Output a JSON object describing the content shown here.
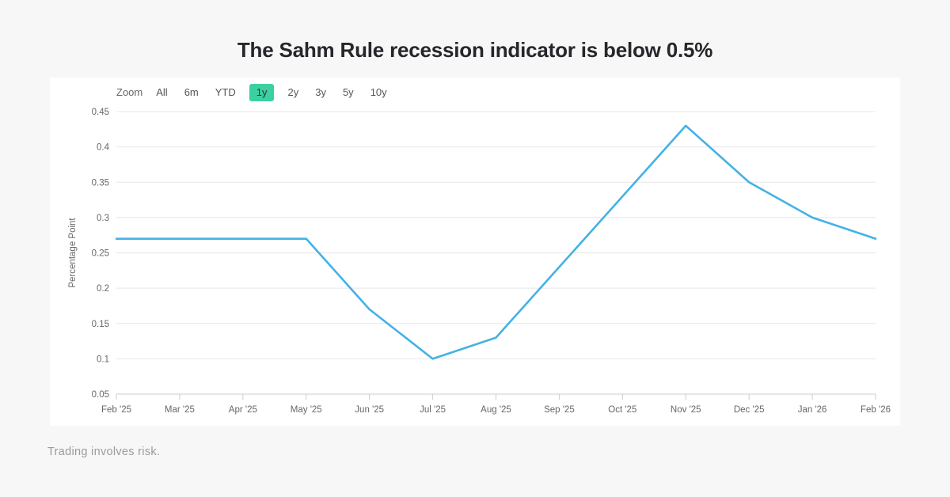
{
  "header": {
    "title": "The Sahm Rule recession indicator is below 0.5%"
  },
  "toolbar": {
    "zoom_label": "Zoom",
    "ranges": [
      "All",
      "6m",
      "YTD",
      "1y",
      "2y",
      "3y",
      "5y",
      "10y"
    ],
    "selected": "1y"
  },
  "chart_data": {
    "type": "line",
    "categories": [
      "Feb '25",
      "Mar '25",
      "Apr '25",
      "May '25",
      "Jun '25",
      "Jul '25",
      "Aug '25",
      "Sep '25",
      "Oct '25",
      "Nov '25",
      "Dec '25",
      "Jan '26",
      "Feb '26"
    ],
    "values": [
      0.27,
      0.27,
      0.27,
      0.27,
      0.17,
      0.1,
      0.13,
      0.23,
      0.33,
      0.43,
      0.35,
      0.3,
      0.27
    ],
    "title": "",
    "xlabel": "",
    "ylabel": "Percentage Point",
    "ylim": [
      0.05,
      0.45
    ],
    "ytick_step": 0.05,
    "grid": true,
    "legend": "none",
    "line_color": "#44b2e4",
    "grid_color": "#e7e7e7",
    "axis_line_color": "#cccccc",
    "tick_label_color": "#666666"
  },
  "colors": {
    "accent_green": "#3bd0a2",
    "panel_background": "#ffffff",
    "page_background": "#f7f7f7"
  },
  "footer": {
    "disclaimer": "Trading involves risk."
  }
}
